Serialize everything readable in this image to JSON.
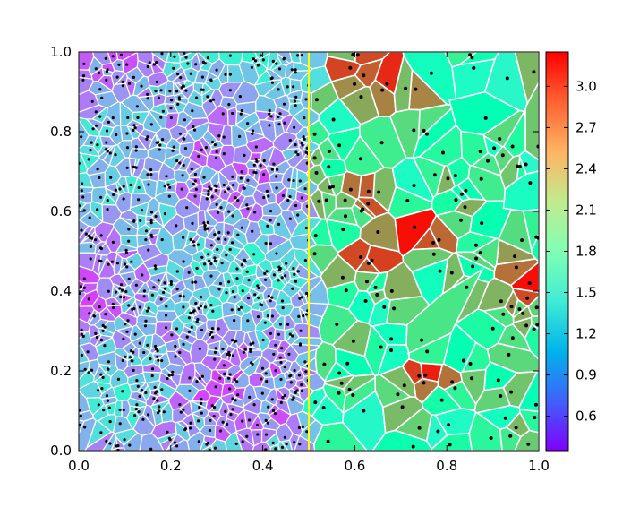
{
  "chart_data": {
    "type": "heatmap",
    "subtype": "voronoi",
    "title": "",
    "xlabel": "",
    "ylabel": "",
    "xlim": [
      0.0,
      1.0
    ],
    "ylim": [
      0.0,
      1.0
    ],
    "x_ticks": [
      0.0,
      0.2,
      0.4,
      0.6,
      0.8,
      1.0
    ],
    "y_ticks": [
      0.0,
      0.2,
      0.4,
      0.6,
      0.8,
      1.0
    ],
    "x_tick_labels": [
      "0.0",
      "0.2",
      "0.4",
      "0.6",
      "0.8",
      "1.0"
    ],
    "y_tick_labels": [
      "0.0",
      "0.2",
      "0.4",
      "0.6",
      "0.8",
      "1.0"
    ],
    "interface_x": 0.5,
    "interface_color": "#ffff00",
    "colormap": "rainbow",
    "colorbar": {
      "range": [
        0.35,
        3.25
      ],
      "ticks": [
        0.6,
        0.9,
        1.2,
        1.5,
        1.8,
        2.1,
        2.4,
        2.7,
        3.0
      ],
      "tick_labels": [
        "0.6",
        "0.9",
        "1.2",
        "1.5",
        "1.8",
        "2.1",
        "2.4",
        "2.7",
        "3.0"
      ],
      "placement": "right"
    },
    "regions": [
      {
        "side": "left",
        "x_range": [
          0.0,
          0.5
        ],
        "point_density": "high",
        "value_range": [
          0.5,
          1.6
        ],
        "edge_color": "#ffffff"
      },
      {
        "side": "right",
        "x_range": [
          0.5,
          1.0
        ],
        "point_density": "low",
        "value_range": [
          1.4,
          3.2
        ],
        "edge_color": "#ffffff"
      }
    ],
    "hot_spots": [
      {
        "x": 0.73,
        "y": 0.56,
        "value": 3.2
      },
      {
        "x": 0.63,
        "y": 0.65,
        "value": 2.9
      },
      {
        "x": 0.67,
        "y": 0.92,
        "value": 3.1
      },
      {
        "x": 0.98,
        "y": 0.42,
        "value": 3.2
      },
      {
        "x": 0.63,
        "y": 0.47,
        "value": 2.9
      },
      {
        "x": 0.75,
        "y": 0.17,
        "value": 2.8
      },
      {
        "x": 0.59,
        "y": 0.96,
        "value": 3.0
      }
    ]
  }
}
